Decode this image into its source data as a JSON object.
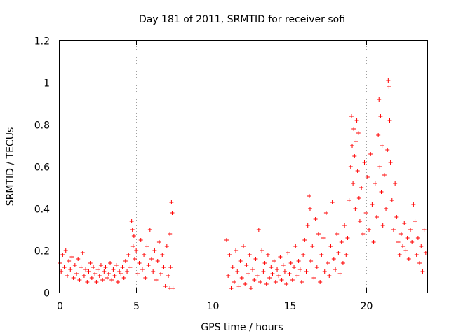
{
  "chart_data": {
    "type": "scatter",
    "title": "Day 181 of 2011, SRMTID for receiver sofi",
    "xlabel": "GPS time / hours",
    "ylabel": "SRMTID / TECUs",
    "xlim": [
      0,
      24
    ],
    "ylim": [
      0,
      1.2
    ],
    "xticks": [
      0,
      5,
      10,
      15,
      20
    ],
    "yticks": [
      0,
      0.2,
      0.4,
      0.6,
      0.8,
      1,
      1.2
    ],
    "xtick_labels": [
      "0",
      "5",
      "10",
      "15",
      "20"
    ],
    "ytick_labels": [
      "0",
      "0.2",
      "0.4",
      "0.6",
      "0.8",
      "1",
      "1.2"
    ],
    "grid": true,
    "marker": "+",
    "series": [
      {
        "name": "sofi",
        "color": "#ff0000",
        "points": [
          [
            0.0,
            0.14
          ],
          [
            0.1,
            0.1
          ],
          [
            0.2,
            0.18
          ],
          [
            0.3,
            0.12
          ],
          [
            0.4,
            0.2
          ],
          [
            0.5,
            0.08
          ],
          [
            0.6,
            0.15
          ],
          [
            0.7,
            0.11
          ],
          [
            0.8,
            0.17
          ],
          [
            0.9,
            0.07
          ],
          [
            1.0,
            0.13
          ],
          [
            1.1,
            0.09
          ],
          [
            1.2,
            0.16
          ],
          [
            1.3,
            0.06
          ],
          [
            1.4,
            0.12
          ],
          [
            1.5,
            0.19
          ],
          [
            1.6,
            0.08
          ],
          [
            1.7,
            0.11
          ],
          [
            1.8,
            0.05
          ],
          [
            1.9,
            0.1
          ],
          [
            2.0,
            0.14
          ],
          [
            2.1,
            0.07
          ],
          [
            2.2,
            0.12
          ],
          [
            2.3,
            0.09
          ],
          [
            2.4,
            0.05
          ],
          [
            2.5,
            0.11
          ],
          [
            2.6,
            0.08
          ],
          [
            2.7,
            0.13
          ],
          [
            2.8,
            0.06
          ],
          [
            2.9,
            0.1
          ],
          [
            3.0,
            0.12
          ],
          [
            3.1,
            0.07
          ],
          [
            3.2,
            0.09
          ],
          [
            3.3,
            0.14
          ],
          [
            3.4,
            0.06
          ],
          [
            3.5,
            0.11
          ],
          [
            3.6,
            0.08
          ],
          [
            3.7,
            0.13
          ],
          [
            3.8,
            0.05
          ],
          [
            3.9,
            0.1
          ],
          [
            4.0,
            0.09
          ],
          [
            4.1,
            0.12
          ],
          [
            4.2,
            0.07
          ],
          [
            4.3,
            0.15
          ],
          [
            4.4,
            0.1
          ],
          [
            4.5,
            0.18
          ],
          [
            4.6,
            0.12
          ],
          [
            4.7,
            0.34
          ],
          [
            4.75,
            0.3
          ],
          [
            4.8,
            0.22
          ],
          [
            4.85,
            0.27
          ],
          [
            4.9,
            0.16
          ],
          [
            5.0,
            0.2
          ],
          [
            5.1,
            0.09
          ],
          [
            5.2,
            0.14
          ],
          [
            5.3,
            0.25
          ],
          [
            5.4,
            0.11
          ],
          [
            5.5,
            0.18
          ],
          [
            5.6,
            0.07
          ],
          [
            5.7,
            0.22
          ],
          [
            5.8,
            0.13
          ],
          [
            5.9,
            0.3
          ],
          [
            6.0,
            0.16
          ],
          [
            6.1,
            0.1
          ],
          [
            6.2,
            0.2
          ],
          [
            6.3,
            0.06
          ],
          [
            6.4,
            0.15
          ],
          [
            6.5,
            0.24
          ],
          [
            6.6,
            0.09
          ],
          [
            6.7,
            0.18
          ],
          [
            6.8,
            0.12
          ],
          [
            6.9,
            0.03
          ],
          [
            7.0,
            0.22
          ],
          [
            7.1,
            0.08
          ],
          [
            7.2,
            0.28
          ],
          [
            7.25,
            0.12
          ],
          [
            7.3,
            0.43
          ],
          [
            7.35,
            0.38
          ],
          [
            7.4,
            0.02
          ],
          [
            7.2,
            0.02
          ],
          [
            10.9,
            0.25
          ],
          [
            11.0,
            0.08
          ],
          [
            11.1,
            0.18
          ],
          [
            11.2,
            0.02
          ],
          [
            11.3,
            0.12
          ],
          [
            11.4,
            0.05
          ],
          [
            11.5,
            0.2
          ],
          [
            11.6,
            0.1
          ],
          [
            11.7,
            0.03
          ],
          [
            11.8,
            0.15
          ],
          [
            11.9,
            0.07
          ],
          [
            12.0,
            0.22
          ],
          [
            12.1,
            0.04
          ],
          [
            12.2,
            0.13
          ],
          [
            12.3,
            0.09
          ],
          [
            12.4,
            0.18
          ],
          [
            12.5,
            0.02
          ],
          [
            12.6,
            0.11
          ],
          [
            12.7,
            0.06
          ],
          [
            12.8,
            0.16
          ],
          [
            12.9,
            0.08
          ],
          [
            13.0,
            0.3
          ],
          [
            13.1,
            0.05
          ],
          [
            13.2,
            0.2
          ],
          [
            13.3,
            0.1
          ],
          [
            13.4,
            0.14
          ],
          [
            13.5,
            0.04
          ],
          [
            13.6,
            0.18
          ],
          [
            13.7,
            0.07
          ],
          [
            13.8,
            0.12
          ],
          [
            13.9,
            0.09
          ],
          [
            14.0,
            0.15
          ],
          [
            14.1,
            0.05
          ],
          [
            14.2,
            0.11
          ],
          [
            14.3,
            0.08
          ],
          [
            14.4,
            0.17
          ],
          [
            14.5,
            0.06
          ],
          [
            14.6,
            0.13
          ],
          [
            14.7,
            0.1
          ],
          [
            14.8,
            0.04
          ],
          [
            14.9,
            0.19
          ],
          [
            15.0,
            0.09
          ],
          [
            15.1,
            0.14
          ],
          [
            15.2,
            0.06
          ],
          [
            15.3,
            0.12
          ],
          [
            15.4,
            0.22
          ],
          [
            15.5,
            0.08
          ],
          [
            15.6,
            0.15
          ],
          [
            15.7,
            0.11
          ],
          [
            15.8,
            0.05
          ],
          [
            15.9,
            0.18
          ],
          [
            16.0,
            0.25
          ],
          [
            16.1,
            0.1
          ],
          [
            16.2,
            0.32
          ],
          [
            16.3,
            0.46
          ],
          [
            16.35,
            0.4
          ],
          [
            16.4,
            0.15
          ],
          [
            16.5,
            0.22
          ],
          [
            16.6,
            0.07
          ],
          [
            16.7,
            0.35
          ],
          [
            16.8,
            0.12
          ],
          [
            16.9,
            0.28
          ],
          [
            17.0,
            0.05
          ],
          [
            17.1,
            0.18
          ],
          [
            17.2,
            0.26
          ],
          [
            17.3,
            0.1
          ],
          [
            17.4,
            0.38
          ],
          [
            17.5,
            0.14
          ],
          [
            17.6,
            0.08
          ],
          [
            17.7,
            0.22
          ],
          [
            17.8,
            0.43
          ],
          [
            17.9,
            0.16
          ],
          [
            18.0,
            0.11
          ],
          [
            18.1,
            0.28
          ],
          [
            18.2,
            0.19
          ],
          [
            18.3,
            0.09
          ],
          [
            18.4,
            0.24
          ],
          [
            18.5,
            0.14
          ],
          [
            18.6,
            0.32
          ],
          [
            18.7,
            0.18
          ],
          [
            18.8,
            0.26
          ],
          [
            18.9,
            0.44
          ],
          [
            19.0,
            0.6
          ],
          [
            19.05,
            0.84
          ],
          [
            19.1,
            0.7
          ],
          [
            19.15,
            0.52
          ],
          [
            19.2,
            0.78
          ],
          [
            19.25,
            0.65
          ],
          [
            19.3,
            0.4
          ],
          [
            19.35,
            0.72
          ],
          [
            19.4,
            0.82
          ],
          [
            19.45,
            0.58
          ],
          [
            19.5,
            0.76
          ],
          [
            19.55,
            0.45
          ],
          [
            19.6,
            0.34
          ],
          [
            19.7,
            0.5
          ],
          [
            19.8,
            0.28
          ],
          [
            19.9,
            0.62
          ],
          [
            20.0,
            0.38
          ],
          [
            20.1,
            0.55
          ],
          [
            20.2,
            0.3
          ],
          [
            20.3,
            0.66
          ],
          [
            20.4,
            0.42
          ],
          [
            20.5,
            0.24
          ],
          [
            20.6,
            0.52
          ],
          [
            20.7,
            0.36
          ],
          [
            20.8,
            0.75
          ],
          [
            20.85,
            0.92
          ],
          [
            20.9,
            0.6
          ],
          [
            20.95,
            0.84
          ],
          [
            21.0,
            0.48
          ],
          [
            21.05,
            0.7
          ],
          [
            21.1,
            0.32
          ],
          [
            21.2,
            0.56
          ],
          [
            21.3,
            0.4
          ],
          [
            21.4,
            0.68
          ],
          [
            21.45,
            1.01
          ],
          [
            21.5,
            0.98
          ],
          [
            21.55,
            0.82
          ],
          [
            21.6,
            0.62
          ],
          [
            21.7,
            0.44
          ],
          [
            21.8,
            0.3
          ],
          [
            21.9,
            0.52
          ],
          [
            22.0,
            0.36
          ],
          [
            22.1,
            0.24
          ],
          [
            22.2,
            0.18
          ],
          [
            22.3,
            0.28
          ],
          [
            22.4,
            0.22
          ],
          [
            22.5,
            0.33
          ],
          [
            22.6,
            0.2
          ],
          [
            22.7,
            0.26
          ],
          [
            22.8,
            0.16
          ],
          [
            22.9,
            0.3
          ],
          [
            23.0,
            0.24
          ],
          [
            23.1,
            0.42
          ],
          [
            23.2,
            0.34
          ],
          [
            23.3,
            0.18
          ],
          [
            23.4,
            0.26
          ],
          [
            23.5,
            0.14
          ],
          [
            23.6,
            0.22
          ],
          [
            23.7,
            0.1
          ],
          [
            23.8,
            0.3
          ],
          [
            23.9,
            0.19
          ]
        ]
      }
    ]
  }
}
